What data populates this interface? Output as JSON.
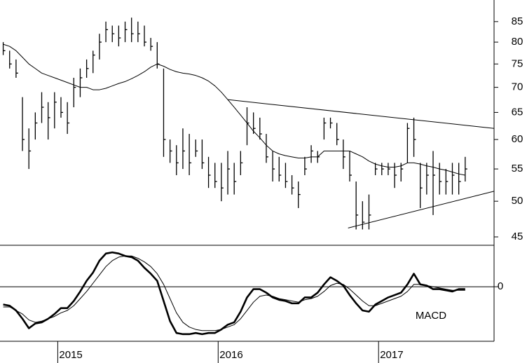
{
  "chart_data": [
    {
      "type": "ohlc",
      "color": "#000000",
      "log_scale": true,
      "xlim": [
        2014.64,
        2017.72
      ],
      "xticks": [
        2015,
        2016,
        2017
      ],
      "ylim": [
        43.9,
        90.6
      ],
      "yticks": [
        45,
        50,
        55,
        60,
        65,
        70,
        75,
        80,
        85
      ],
      "x": [
        2014.66,
        2014.7,
        2014.74,
        2014.78,
        2014.82,
        2014.86,
        2014.9,
        2014.94,
        2014.98,
        2015.02,
        2015.06,
        2015.1,
        2015.14,
        2015.18,
        2015.22,
        2015.26,
        2015.3,
        2015.34,
        2015.38,
        2015.42,
        2015.46,
        2015.5,
        2015.54,
        2015.58,
        2015.62,
        2015.66,
        2015.7,
        2015.74,
        2015.78,
        2015.82,
        2015.86,
        2015.9,
        2015.94,
        2015.98,
        2016.02,
        2016.06,
        2016.1,
        2016.14,
        2016.18,
        2016.22,
        2016.26,
        2016.3,
        2016.34,
        2016.38,
        2016.42,
        2016.46,
        2016.5,
        2016.54,
        2016.58,
        2016.62,
        2016.66,
        2016.7,
        2016.74,
        2016.78,
        2016.82,
        2016.86,
        2016.9,
        2016.94,
        2016.98,
        2017.02,
        2017.06,
        2017.1,
        2017.14,
        2017.18,
        2017.22,
        2017.26,
        2017.3,
        2017.34,
        2017.38,
        2017.42,
        2017.46,
        2017.5,
        2017.54
      ],
      "high": [
        80,
        78,
        76,
        68,
        62,
        65,
        69,
        67,
        69,
        68,
        67,
        72,
        74,
        76,
        78,
        82,
        85,
        84,
        84,
        85,
        86,
        85,
        84,
        81,
        80,
        74,
        60,
        59,
        62,
        61,
        60,
        60,
        57,
        56,
        56,
        58,
        56,
        58,
        66,
        65,
        64,
        61,
        58,
        57,
        56,
        54,
        53,
        57,
        59,
        58,
        64,
        64,
        63,
        60,
        58,
        53,
        50,
        51,
        56,
        56,
        56,
        56,
        56,
        63,
        64,
        56,
        56,
        58,
        56,
        55,
        56,
        56,
        57
      ],
      "low": [
        77,
        74,
        72,
        58,
        55,
        60,
        63,
        60,
        62,
        64,
        61,
        66,
        68,
        72,
        73,
        76,
        80,
        80,
        79,
        80,
        80,
        80,
        79,
        78,
        74,
        57,
        56,
        54,
        55,
        54,
        57,
        55,
        52,
        52,
        50,
        51,
        51,
        54,
        59,
        61,
        60,
        56,
        53,
        53,
        52,
        51,
        49,
        54,
        56,
        56,
        60,
        62,
        59,
        55,
        53,
        46,
        46,
        46,
        54,
        54,
        54,
        52,
        53,
        56,
        57,
        49,
        51,
        48,
        51,
        51,
        51,
        51,
        53
      ],
      "close": [
        78,
        75,
        73,
        60,
        58,
        63,
        66,
        64,
        67,
        65,
        63,
        70,
        72,
        74,
        77,
        80,
        83,
        82,
        81,
        83,
        82,
        82,
        80,
        79,
        75,
        60,
        58,
        56,
        58,
        56,
        58,
        56,
        54,
        53,
        52,
        55,
        53,
        56,
        63,
        62,
        61,
        57,
        55,
        54,
        53,
        52,
        51,
        55,
        58,
        57,
        63,
        63,
        60,
        57,
        54,
        48,
        47,
        48,
        55,
        55,
        55,
        54,
        55,
        62,
        60,
        52,
        54,
        54,
        53,
        53,
        54,
        53,
        55
      ],
      "series": [
        {
          "color": "#000000",
          "values": [
            79.5,
            79,
            78,
            76.5,
            75,
            74,
            73,
            72.5,
            72,
            71.5,
            71,
            70.5,
            70,
            70,
            69.5,
            69.5,
            69.8,
            70.3,
            70.8,
            71.2,
            71.8,
            72.5,
            73.3,
            74.3,
            75,
            74.5,
            73.8,
            73.3,
            73,
            72.8,
            72.5,
            72,
            71.3,
            70.3,
            69,
            67.5,
            66,
            64.5,
            63,
            61.5,
            60.3,
            59,
            58,
            57.5,
            57.2,
            57,
            56.8,
            56.8,
            57,
            57,
            58,
            58,
            58,
            58,
            58,
            57.5,
            57,
            56.3,
            55.8,
            55.5,
            55.3,
            55.3,
            55.5,
            56,
            56,
            55.8,
            55.5,
            55.3,
            55,
            54.8,
            54.5,
            54.2,
            54
          ]
        }
      ],
      "trendlines": [
        {
          "x": [
            2016.06,
            2017.72
          ],
          "values": [
            67.5,
            62
          ]
        },
        {
          "x": [
            2016.81,
            2017.72
          ],
          "values": [
            46.2,
            51.5
          ]
        }
      ]
    },
    {
      "type": "line",
      "annotation": "MACD",
      "ylim": [
        -4.6,
        3.5
      ],
      "yticks": [
        0
      ],
      "grid": true,
      "series": [
        {
          "color": "#000000",
          "values": [
            -1.5,
            -1.6,
            -2.0,
            -2.7,
            -3.5,
            -3.1,
            -3.0,
            -2.7,
            -2.3,
            -1.8,
            -1.8,
            -1.2,
            -0.4,
            0.5,
            1.2,
            2.2,
            2.8,
            2.9,
            2.8,
            2.6,
            2.5,
            2.2,
            1.6,
            1.1,
            0.5,
            -1.2,
            -2.9,
            -3.9,
            -4.0,
            -4.0,
            -3.9,
            -4.0,
            -3.9,
            -3.9,
            -3.6,
            -3.2,
            -3.0,
            -2.1,
            -0.9,
            -0.2,
            -0.2,
            -0.5,
            -0.9,
            -1.1,
            -1.2,
            -1.4,
            -1.4,
            -0.9,
            -0.9,
            -0.5,
            0.2,
            0.8,
            0.5,
            0.1,
            -0.7,
            -1.4,
            -2.0,
            -2.1,
            -1.5,
            -1.2,
            -0.9,
            -0.7,
            -0.5,
            0.2,
            1.1,
            0.2,
            0.1,
            -0.2,
            -0.2,
            -0.3,
            -0.4,
            -0.2,
            -0.2
          ]
        },
        {
          "color": "#000000",
          "values": [
            -1.7,
            -1.7,
            -2.0,
            -2.3,
            -2.8,
            -3.0,
            -2.9,
            -2.7,
            -2.5,
            -2.2,
            -2.0,
            -1.6,
            -1.0,
            -0.4,
            0.3,
            1.0,
            1.7,
            2.2,
            2.5,
            2.6,
            2.6,
            2.4,
            2.1,
            1.7,
            1.1,
            0.2,
            -1.0,
            -2.2,
            -3.0,
            -3.4,
            -3.6,
            -3.7,
            -3.7,
            -3.7,
            -3.6,
            -3.4,
            -3.2,
            -2.7,
            -2.0,
            -1.3,
            -0.8,
            -0.7,
            -0.8,
            -1.0,
            -1.1,
            -1.2,
            -1.3,
            -1.1,
            -1.0,
            -0.8,
            -0.4,
            0.1,
            0.3,
            0.2,
            -0.2,
            -0.7,
            -1.2,
            -1.6,
            -1.6,
            -1.4,
            -1.2,
            -1.0,
            -0.8,
            -0.4,
            0.2,
            0.2,
            0.1,
            0.0,
            -0.1,
            -0.2,
            -0.3,
            -0.3,
            -0.3
          ]
        }
      ]
    }
  ]
}
